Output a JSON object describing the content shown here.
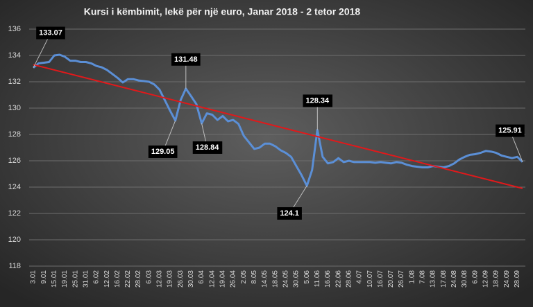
{
  "chart_data": {
    "type": "line",
    "title": "Kursi i këmbimit, lekë për një euro, Janar 2018 - 2 tetor 2018",
    "categories": [
      "3.01",
      null,
      "9.01",
      null,
      "15.01",
      null,
      "19.01",
      null,
      "25.01",
      null,
      "31.01",
      null,
      "6.02",
      null,
      "12.02",
      null,
      "16.02",
      null,
      "22.02",
      null,
      "28.02",
      null,
      "6.03",
      null,
      "12.03",
      null,
      "19.03",
      null,
      "26.03",
      null,
      "30.03",
      null,
      "6.04",
      null,
      "12.04",
      null,
      "19.04",
      null,
      "26.04",
      null,
      "2.05",
      null,
      "8.05",
      null,
      "14.05",
      null,
      "18.05",
      null,
      "24.05",
      null,
      "30.05",
      null,
      "5.06",
      null,
      "11.06",
      null,
      "16.06",
      null,
      "22.06",
      null,
      "28.06",
      null,
      "4.07",
      null,
      "10.07",
      null,
      "16.07",
      null,
      "20.07",
      null,
      "26.07",
      null,
      "1.08",
      null,
      "7.08",
      null,
      "13.08",
      null,
      "17.08",
      null,
      "24.08",
      null,
      "30.08",
      null,
      "6.09",
      null,
      "12.09",
      null,
      "18.09",
      null,
      "24.09",
      null,
      "28.09",
      null
    ],
    "series": [
      {
        "color": "#5b8fd6",
        "values": [
          133.07,
          133.4,
          133.45,
          133.5,
          134.0,
          134.05,
          133.9,
          133.6,
          133.6,
          133.5,
          133.5,
          133.4,
          133.2,
          133.1,
          132.9,
          132.6,
          132.3,
          131.95,
          132.2,
          132.2,
          132.1,
          132.05,
          132.0,
          131.8,
          131.4,
          130.6,
          129.8,
          129.05,
          130.6,
          131.48,
          130.9,
          130.3,
          128.84,
          129.6,
          129.5,
          129.1,
          129.4,
          129.0,
          129.1,
          128.8,
          127.9,
          127.4,
          126.9,
          127.0,
          127.3,
          127.3,
          127.1,
          126.8,
          126.6,
          126.3,
          125.6,
          124.9,
          124.1,
          125.3,
          128.34,
          126.3,
          125.8,
          125.9,
          126.2,
          125.9,
          126.0,
          125.9,
          125.9,
          125.9,
          125.9,
          125.85,
          125.9,
          125.85,
          125.8,
          125.9,
          125.85,
          125.7,
          125.6,
          125.55,
          125.5,
          125.5,
          125.6,
          125.55,
          125.5,
          125.6,
          125.8,
          126.1,
          126.3,
          126.45,
          126.5,
          126.6,
          126.75,
          126.7,
          126.6,
          126.4,
          126.3,
          126.2,
          126.3,
          125.91
        ]
      }
    ],
    "trendline": {
      "color": "#e0191b",
      "values": [
        133.3,
        123.9
      ]
    },
    "label_points": [
      0,
      29,
      27,
      32,
      54,
      52,
      93
    ],
    "ylim": [
      118,
      136
    ],
    "yticks": [
      118,
      120,
      122,
      124,
      126,
      128,
      130,
      132,
      134,
      136
    ],
    "grid": true
  }
}
